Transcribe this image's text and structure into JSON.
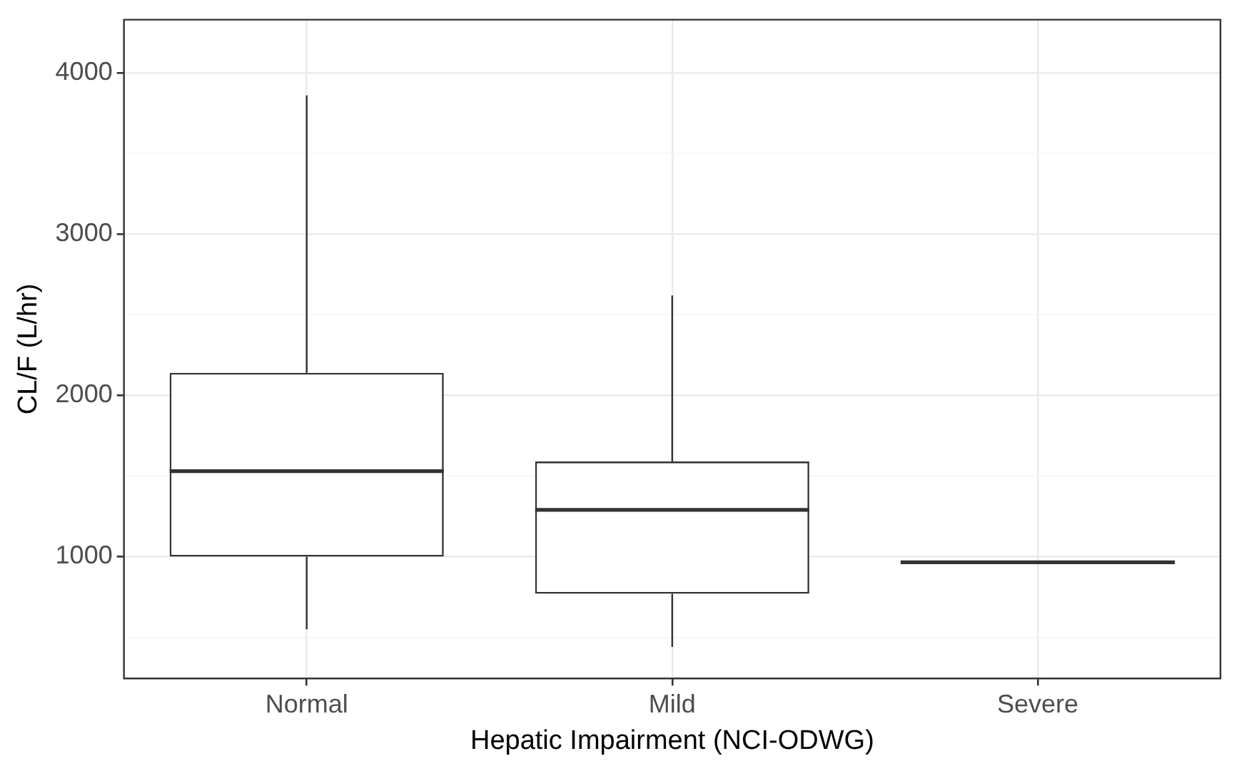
{
  "chart_data": {
    "type": "box",
    "xlabel": "Hepatic Impairment (NCI-ODWG)",
    "ylabel": "CL/F (L/hr)",
    "categories": [
      "Normal",
      "Mild",
      "Severe"
    ],
    "boxes": [
      {
        "low": 550,
        "q1": 1000,
        "median": 1530,
        "q3": 2140,
        "high": 3860
      },
      {
        "low": 440,
        "q1": 770,
        "median": 1290,
        "q3": 1590,
        "high": 2620
      },
      {
        "low": 965,
        "q1": 965,
        "median": 965,
        "q3": 965,
        "high": 965
      }
    ],
    "ylim": [
      245,
      4330
    ],
    "yticks": [
      {
        "value": 500,
        "label": null
      },
      1000,
      {
        "value": 1500,
        "label": null
      },
      2000,
      {
        "value": 2500,
        "label": null
      },
      3000,
      {
        "value": 3500,
        "label": null
      },
      4000
    ],
    "grid": true
  }
}
